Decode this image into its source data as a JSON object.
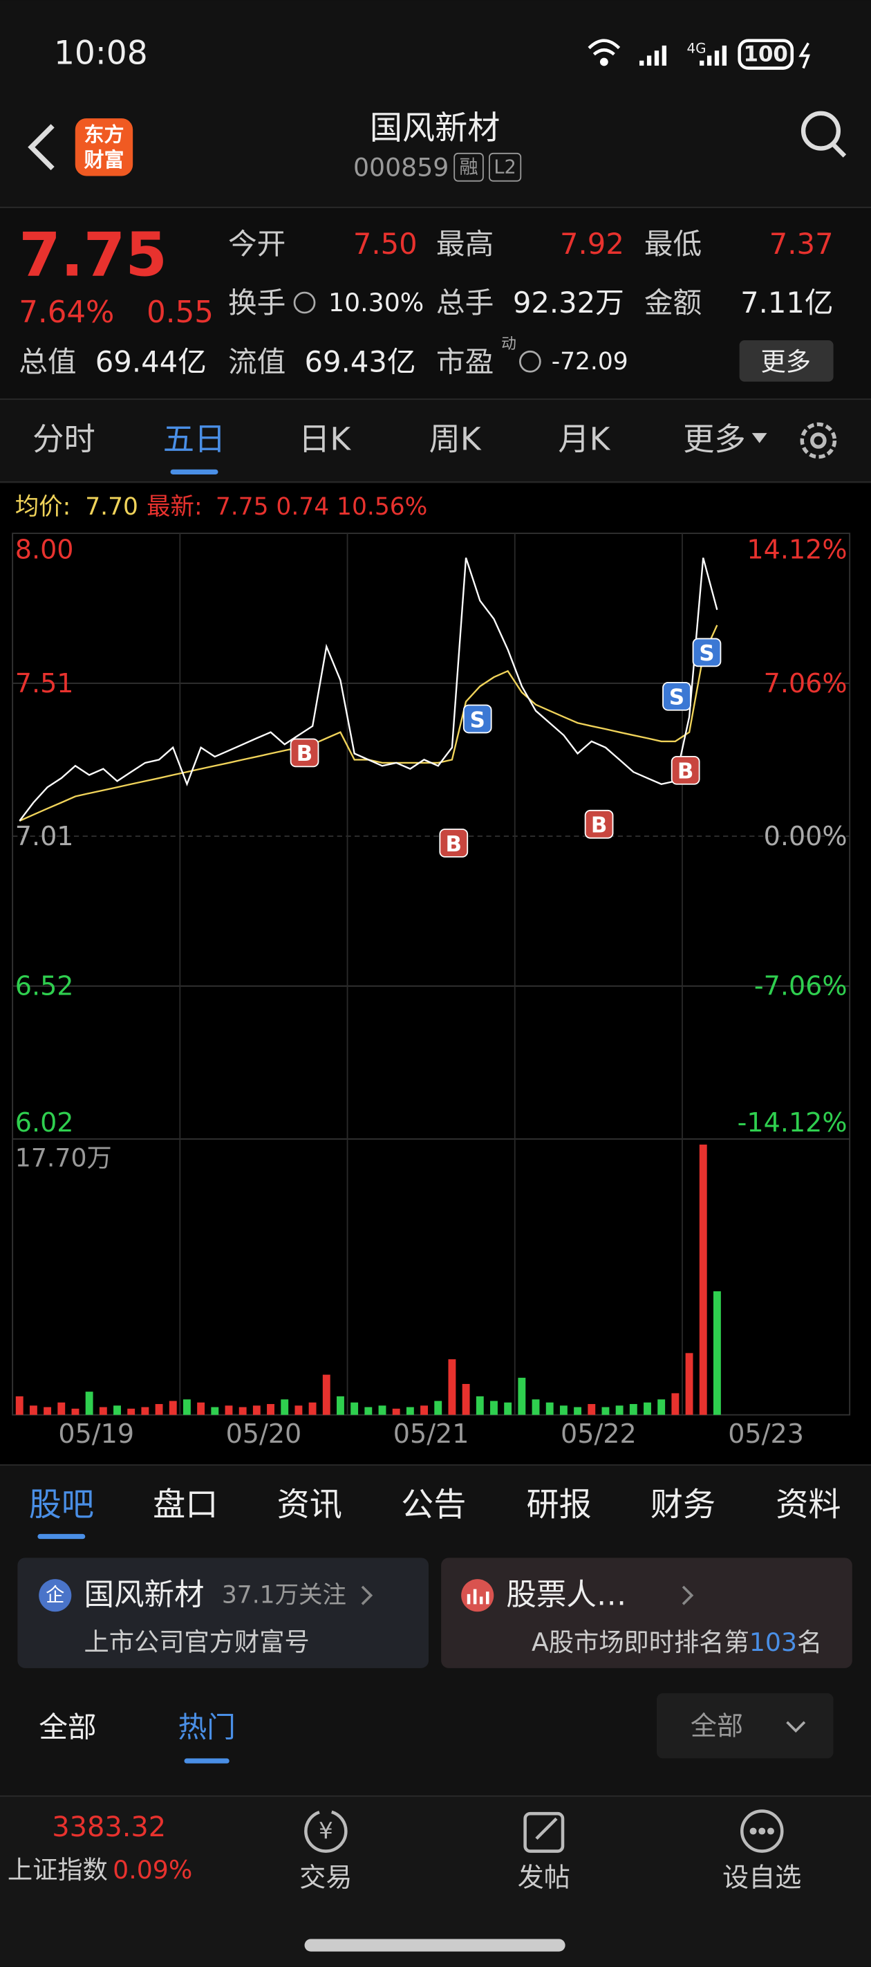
{
  "status": {
    "time": "10:08",
    "network": "4G",
    "battery": "100"
  },
  "header": {
    "logo": [
      "东方",
      "财富"
    ],
    "title": "国风新材",
    "code": "000859",
    "badges": [
      "融",
      "L2"
    ]
  },
  "quote": {
    "price": "7.75",
    "change_pct": "7.64%",
    "change": "0.55",
    "fields": [
      {
        "label": "今开",
        "value": "7.50"
      },
      {
        "label": "最高",
        "value": "7.92"
      },
      {
        "label": "最低",
        "value": "7.37"
      },
      {
        "label": "换手",
        "value": "10.30%"
      },
      {
        "label": "总手",
        "value": "92.32万"
      },
      {
        "label": "金额",
        "value": "7.11亿"
      },
      {
        "label": "总值",
        "value": "69.44亿"
      },
      {
        "label": "流值",
        "value": "69.43亿"
      },
      {
        "label": "市盈",
        "value": "-72.09"
      }
    ],
    "pe_note": "动",
    "more": "更多"
  },
  "tabs": {
    "items": [
      "分时",
      "五日",
      "日K",
      "周K",
      "月K",
      "更多"
    ],
    "active": 1
  },
  "chart": {
    "avg_label": "均价:",
    "avg": "7.70",
    "latest_label": "最新:",
    "latest": "7.75 0.74 10.56%",
    "ylim": [
      6.02,
      8.0
    ],
    "yticks": [
      {
        "value": 8.0,
        "label": "8.00"
      },
      {
        "value": 7.51,
        "label": "7.51"
      },
      {
        "value": 7.01,
        "label": "7.01"
      },
      {
        "value": 6.52,
        "label": "6.52"
      },
      {
        "value": 6.02,
        "label": "6.02"
      }
    ],
    "yticks_right": [
      "14.12%",
      "7.06%",
      "0.00%",
      "-7.06%",
      "-14.12%"
    ],
    "dates": [
      "05/19",
      "05/20",
      "05/21",
      "05/22",
      "05/23"
    ],
    "price": [
      7.06,
      7.12,
      7.17,
      7.2,
      7.24,
      7.21,
      7.23,
      7.19,
      7.22,
      7.25,
      7.26,
      7.3,
      7.18,
      7.3,
      7.27,
      7.29,
      7.31,
      7.33,
      7.35,
      7.31,
      7.34,
      7.37,
      7.63,
      7.52,
      7.28,
      7.26,
      7.24,
      7.25,
      7.23,
      7.26,
      7.24,
      7.3,
      7.92,
      7.78,
      7.72,
      7.62,
      7.5,
      7.42,
      7.38,
      7.34,
      7.28,
      7.32,
      7.3,
      7.26,
      7.22,
      7.2,
      7.18,
      7.19,
      7.4,
      7.92,
      7.75
    ],
    "average": [
      7.06,
      7.08,
      7.1,
      7.12,
      7.14,
      7.15,
      7.16,
      7.17,
      7.18,
      7.19,
      7.2,
      7.21,
      7.22,
      7.23,
      7.24,
      7.25,
      7.26,
      7.27,
      7.28,
      7.29,
      7.3,
      7.31,
      7.33,
      7.35,
      7.26,
      7.26,
      7.25,
      7.25,
      7.25,
      7.25,
      7.25,
      7.26,
      7.45,
      7.5,
      7.53,
      7.55,
      7.48,
      7.44,
      7.42,
      7.4,
      7.38,
      7.37,
      7.36,
      7.35,
      7.34,
      7.33,
      7.32,
      7.32,
      7.35,
      7.6,
      7.7
    ],
    "volume_max": {
      "value": 17.7,
      "label": "17.70万"
    },
    "volume": [
      1.2,
      0.6,
      0.5,
      0.8,
      0.4,
      1.5,
      0.5,
      0.6,
      0.4,
      0.5,
      0.7,
      0.9,
      1.0,
      0.8,
      0.5,
      0.6,
      0.5,
      0.6,
      0.7,
      1.0,
      0.6,
      0.8,
      2.6,
      1.2,
      0.8,
      0.5,
      0.6,
      0.4,
      0.5,
      0.6,
      0.9,
      3.6,
      2.0,
      1.2,
      0.9,
      0.8,
      2.4,
      1.0,
      0.8,
      0.6,
      0.5,
      0.7,
      0.5,
      0.6,
      0.7,
      0.8,
      1.0,
      1.4,
      4.0,
      17.5,
      8.0
    ],
    "trade_markers": [
      "B",
      "B",
      "S",
      "B",
      "B",
      "S",
      "S"
    ]
  },
  "sections": {
    "items": [
      "股吧",
      "盘口",
      "资讯",
      "公告",
      "研报",
      "财务",
      "资料"
    ],
    "active": 0
  },
  "cards": [
    {
      "icon": "企",
      "title": "国风新材",
      "followers": "37.1万关注",
      "subtitle": "上市公司官方财富号"
    },
    {
      "title": "股票人…",
      "subtitle": "A股市场即时排名第",
      "rank": "103",
      "suffix": "名"
    }
  ],
  "filters": {
    "items": [
      "全部",
      "热门"
    ],
    "active": 1,
    "dropdown": "全部"
  },
  "bottom": {
    "index_value": "3383.32",
    "index_name": "上证指数",
    "index_change": "0.09%",
    "nav": [
      "交易",
      "发帖",
      "设自选"
    ]
  }
}
